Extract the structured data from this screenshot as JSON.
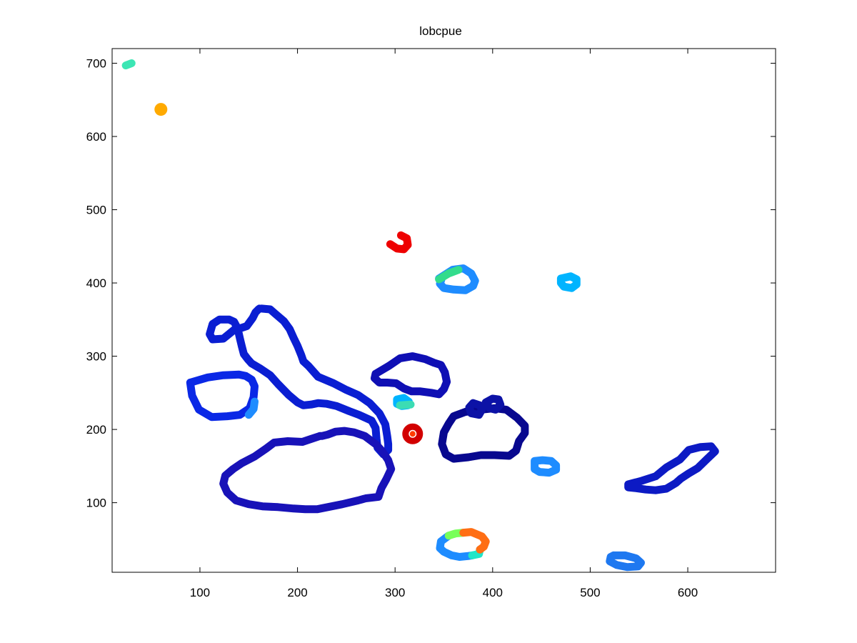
{
  "chart_data": {
    "type": "scatter",
    "title": "lobcpue",
    "xlabel": "",
    "ylabel": "",
    "xlim": [
      10,
      690
    ],
    "ylim": [
      5,
      720
    ],
    "xticks": [
      100,
      200,
      300,
      400,
      500,
      600
    ],
    "yticks": [
      100,
      200,
      300,
      400,
      500,
      600,
      700
    ],
    "grid": false,
    "legend": "none",
    "colormap": "jet",
    "series": [
      {
        "id": "isabela-north",
        "color": "#0a1ed2",
        "x": [
          163,
          172,
          178,
          186,
          192,
          196,
          200,
          204,
          206,
          211,
          221,
          237,
          250,
          262,
          274,
          284,
          290,
          292,
          293,
          293,
          288,
          282,
          281,
          280,
          276,
          263,
          253,
          240,
          230,
          221,
          214,
          206,
          200,
          191,
          180,
          172,
          162,
          153,
          149,
          145,
          143,
          141,
          139,
          137,
          135,
          130,
          120,
          113,
          110,
          113,
          124,
          135,
          141,
          148,
          154,
          157,
          160,
          161
        ],
        "y": [
          365,
          364,
          357,
          348,
          337,
          325,
          314,
          301,
          293,
          287,
          272,
          263,
          254,
          247,
          236,
          222,
          207,
          190,
          180,
          172,
          166,
          175,
          187,
          202,
          212,
          220,
          225,
          232,
          235,
          236,
          234,
          233,
          237,
          247,
          262,
          274,
          283,
          290,
          296,
          303,
          313,
          324,
          336,
          342,
          347,
          350,
          350,
          344,
          330,
          323,
          324,
          336,
          338,
          341,
          352,
          360,
          364,
          365
        ]
      },
      {
        "id": "isabela-south",
        "color": "#1812b8",
        "x": [
          223,
          214,
          205,
          190,
          176,
          168,
          156,
          143,
          134,
          126,
          124,
          128,
          137,
          150,
          164,
          180,
          196,
          208,
          220,
          231,
          246,
          262,
          270,
          283,
          286,
          291,
          296,
          293,
          287,
          281,
          269,
          258,
          248,
          239,
          231,
          225,
          223
        ],
        "y": [
          191,
          187,
          183,
          184,
          182,
          174,
          163,
          154,
          146,
          137,
          126,
          114,
          103,
          98,
          95,
          94,
          92,
          91,
          91,
          94,
          98,
          103,
          106,
          108,
          120,
          132,
          146,
          158,
          170,
          179,
          191,
          196,
          198,
          197,
          193,
          191,
          191
        ]
      },
      {
        "id": "fernandina",
        "color": "#0a28e6",
        "x": [
          90,
          108,
          124,
          140,
          147,
          153,
          156,
          155,
          151,
          141,
          128,
          112,
          99,
          92,
          90
        ],
        "y": [
          264,
          271,
          274,
          275,
          273,
          268,
          259,
          244,
          229,
          220,
          218,
          217,
          227,
          246,
          264
        ]
      },
      {
        "id": "fernandina-edge",
        "color": "#1e8cff",
        "x": [
          150,
          155,
          156
        ],
        "y": [
          220,
          228,
          238
        ]
      },
      {
        "id": "santiago",
        "color": "#0f0fb4",
        "x": [
          280,
          294,
          305,
          318,
          331,
          340,
          347,
          351,
          353,
          350,
          345,
          337,
          326,
          317,
          309,
          301,
          292,
          284,
          279,
          280
        ],
        "y": [
          276,
          287,
          297,
          300,
          296,
          291,
          288,
          278,
          265,
          255,
          248,
          250,
          252,
          252,
          256,
          263,
          264,
          264,
          270,
          276
        ]
      },
      {
        "id": "santa-cruz",
        "color": "#08088f",
        "x": [
          360,
          372,
          388,
          402,
          414,
          425,
          433,
          433,
          427,
          424,
          417,
          402,
          388,
          375,
          360,
          352,
          348,
          350,
          355,
          360
        ],
        "y": [
          218,
          224,
          227,
          229,
          227,
          216,
          205,
          195,
          184,
          171,
          164,
          165,
          165,
          162,
          160,
          166,
          180,
          196,
          208,
          218
        ]
      },
      {
        "id": "pinzon",
        "color": "#0c12a6",
        "x": [
          380,
          387,
          389,
          386,
          378,
          376,
          380
        ],
        "y": [
          236,
          233,
          227,
          220,
          222,
          230,
          236
        ]
      },
      {
        "id": "daphne",
        "color": "#0c12a6",
        "x": [
          393,
          400,
          406,
          408,
          403,
          397,
          393
        ],
        "y": [
          237,
          242,
          241,
          234,
          227,
          229,
          237
        ]
      },
      {
        "id": "san-cristobal",
        "color": "#0c1ac4",
        "x": [
          539,
          553,
          567,
          578,
          592,
          601,
          613,
          624,
          628,
          620,
          610,
          601,
          593,
          588,
          578,
          567,
          557,
          546,
          539,
          539
        ],
        "y": [
          125,
          130,
          136,
          148,
          159,
          172,
          176,
          177,
          170,
          160,
          147,
          140,
          133,
          127,
          119,
          117,
          118,
          120,
          121,
          125
        ]
      },
      {
        "id": "santa-fe",
        "color": "#1e8cff",
        "x": [
          443,
          451,
          460,
          465,
          465,
          458,
          448,
          443,
          443
        ],
        "y": [
          157,
          158,
          157,
          151,
          145,
          141,
          142,
          146,
          157
        ]
      },
      {
        "id": "floreana-blue",
        "color": "#1e8cff",
        "x": [
          355,
          347,
          346,
          350,
          358,
          366,
          374,
          379
        ],
        "y": [
          55,
          47,
          38,
          33,
          28,
          26,
          27,
          28
        ]
      },
      {
        "id": "floreana-cyan",
        "color": "#1ee6c8",
        "x": [
          379,
          386,
          387
        ],
        "y": [
          28,
          30,
          36
        ]
      },
      {
        "id": "floreana-green",
        "color": "#78ff5a",
        "x": [
          355,
          362,
          370
        ],
        "y": [
          55,
          58,
          59
        ]
      },
      {
        "id": "floreana-orange",
        "color": "#ff6e14",
        "x": [
          370,
          378,
          389,
          393,
          391,
          387
        ],
        "y": [
          59,
          60,
          54,
          47,
          40,
          36
        ]
      },
      {
        "id": "espanola",
        "color": "#1e78f0",
        "x": [
          524,
          536,
          547,
          552,
          549,
          538,
          527,
          520,
          521,
          524
        ],
        "y": [
          28,
          28,
          24,
          18,
          13,
          12,
          15,
          20,
          26,
          28
        ]
      },
      {
        "id": "marchena",
        "color": "#1e8cff",
        "x": [
          345,
          359,
          370,
          378,
          382,
          380,
          372,
          360,
          350,
          346,
          348,
          345
        ],
        "y": [
          406,
          418,
          420,
          413,
          403,
          396,
          390,
          391,
          393,
          399,
          407,
          406
        ]
      },
      {
        "id": "marchena-green",
        "color": "#32dc8c",
        "x": [
          345,
          355,
          365
        ],
        "y": [
          405,
          413,
          418
        ]
      },
      {
        "id": "genovesa",
        "color": "#00b4ff",
        "x": [
          470,
          480,
          486,
          486,
          481,
          473,
          470,
          470
        ],
        "y": [
          406,
          409,
          405,
          398,
          393,
          395,
          400,
          406
        ]
      },
      {
        "id": "red-arc",
        "color": "#ee0000",
        "x": [
          295,
          302,
          309,
          313,
          312,
          306
        ],
        "y": [
          453,
          447,
          446,
          452,
          461,
          465
        ]
      },
      {
        "id": "small-cyan-ring",
        "color": "#00b4ff",
        "x": [
          302,
          309,
          314,
          313,
          307,
          302,
          302
        ],
        "y": [
          241,
          243,
          238,
          233,
          232,
          235,
          241
        ]
      },
      {
        "id": "small-cyan-dash",
        "color": "#3cdcb4",
        "x": [
          305,
          316
        ],
        "y": [
          233,
          234
        ]
      },
      {
        "id": "darwin-dash",
        "color": "#3ce6b4",
        "x": [
          24,
          30
        ],
        "y": [
          697,
          700
        ]
      }
    ],
    "points": [
      {
        "id": "wolf-dot",
        "x": 60,
        "y": 637,
        "r": 9,
        "color": "#ffaa00"
      },
      {
        "id": "red-ring",
        "x": 318,
        "y": 194,
        "r": 10,
        "color": "#d20000",
        "ring": true
      },
      {
        "id": "red-ring-inner",
        "x": 318,
        "y": 194,
        "r": 4,
        "color": "#ff3c00",
        "ring": false
      }
    ]
  }
}
